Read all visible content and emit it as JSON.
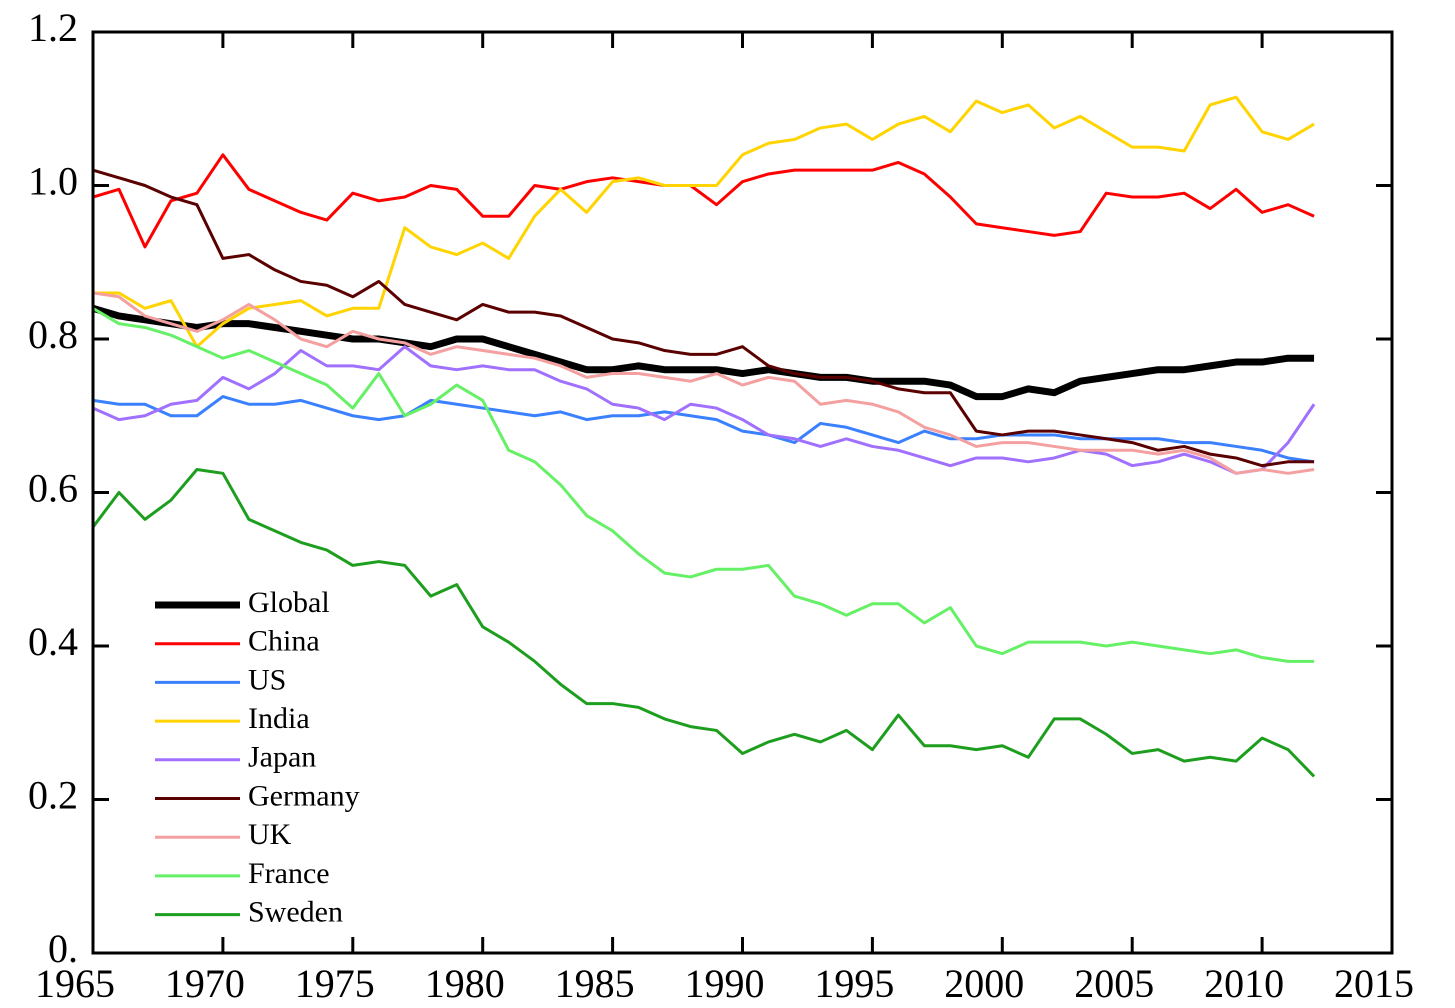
{
  "chart_data": {
    "type": "line",
    "x": [
      1965,
      1966,
      1967,
      1968,
      1969,
      1970,
      1971,
      1972,
      1973,
      1974,
      1975,
      1976,
      1977,
      1978,
      1979,
      1980,
      1981,
      1982,
      1983,
      1984,
      1985,
      1986,
      1987,
      1988,
      1989,
      1990,
      1991,
      1992,
      1993,
      1994,
      1995,
      1996,
      1997,
      1998,
      1999,
      2000,
      2001,
      2002,
      2003,
      2004,
      2005,
      2006,
      2007,
      2008,
      2009,
      2010,
      2011,
      2012
    ],
    "xlim": [
      1965,
      2015
    ],
    "xticks": [
      1965,
      1970,
      1975,
      1980,
      1985,
      1990,
      1995,
      2000,
      2005,
      2010,
      2015
    ],
    "ylim": [
      0,
      1.2
    ],
    "yticks": [
      {
        "value": 0,
        "label": "0."
      },
      0.2,
      0.4,
      0.6,
      0.8,
      {
        "value": 1,
        "label": "1.0"
      },
      1.2
    ],
    "legend": "lower left",
    "series": [
      {
        "name": "Global",
        "color": "#000000",
        "width": 7,
        "values": [
          0.84,
          0.83,
          0.825,
          0.82,
          0.815,
          0.82,
          0.82,
          0.815,
          0.81,
          0.805,
          0.8,
          0.8,
          0.795,
          0.79,
          0.8,
          0.8,
          0.79,
          0.78,
          0.77,
          0.76,
          0.76,
          0.765,
          0.76,
          0.76,
          0.76,
          0.755,
          0.76,
          0.755,
          0.75,
          0.75,
          0.745,
          0.745,
          0.745,
          0.74,
          0.725,
          0.725,
          0.735,
          0.73,
          0.745,
          0.75,
          0.755,
          0.76,
          0.76,
          0.765,
          0.77,
          0.77,
          0.775,
          0.775
        ]
      },
      {
        "name": "China",
        "color": "#ff0000",
        "width": 3,
        "values": [
          0.985,
          0.995,
          0.92,
          0.98,
          0.99,
          1.04,
          0.995,
          0.98,
          0.965,
          0.955,
          0.99,
          0.98,
          0.985,
          1.0,
          0.995,
          0.96,
          0.96,
          1.0,
          0.995,
          1.005,
          1.01,
          1.005,
          1.0,
          1.0,
          0.975,
          1.005,
          1.015,
          1.02,
          1.02,
          1.02,
          1.02,
          1.03,
          1.015,
          0.985,
          0.95,
          0.945,
          0.94,
          0.935,
          0.94,
          0.99,
          0.985,
          0.985,
          0.99,
          0.97,
          0.995,
          0.965,
          0.975,
          0.96
        ]
      },
      {
        "name": "US",
        "color": "#3a80ff",
        "width": 3,
        "values": [
          0.72,
          0.715,
          0.715,
          0.7,
          0.7,
          0.725,
          0.715,
          0.715,
          0.72,
          0.71,
          0.7,
          0.695,
          0.7,
          0.72,
          0.715,
          0.71,
          0.705,
          0.7,
          0.705,
          0.695,
          0.7,
          0.7,
          0.705,
          0.7,
          0.695,
          0.68,
          0.675,
          0.665,
          0.69,
          0.685,
          0.675,
          0.665,
          0.68,
          0.67,
          0.67,
          0.675,
          0.675,
          0.675,
          0.67,
          0.67,
          0.67,
          0.67,
          0.665,
          0.665,
          0.66,
          0.655,
          0.645,
          0.64
        ]
      },
      {
        "name": "India",
        "color": "#ffd400",
        "width": 3,
        "values": [
          0.86,
          0.86,
          0.84,
          0.85,
          0.79,
          0.82,
          0.84,
          0.845,
          0.85,
          0.83,
          0.84,
          0.84,
          0.945,
          0.92,
          0.91,
          0.925,
          0.905,
          0.96,
          0.995,
          0.965,
          1.005,
          1.01,
          1.0,
          1.0,
          1.0,
          1.04,
          1.055,
          1.06,
          1.075,
          1.08,
          1.06,
          1.08,
          1.09,
          1.07,
          1.11,
          1.095,
          1.105,
          1.075,
          1.09,
          1.07,
          1.05,
          1.05,
          1.045,
          1.105,
          1.115,
          1.07,
          1.06,
          1.08
        ]
      },
      {
        "name": "Japan",
        "color": "#a070ff",
        "width": 3,
        "values": [
          0.71,
          0.695,
          0.7,
          0.715,
          0.72,
          0.75,
          0.735,
          0.755,
          0.785,
          0.765,
          0.765,
          0.76,
          0.79,
          0.765,
          0.76,
          0.765,
          0.76,
          0.76,
          0.745,
          0.735,
          0.715,
          0.71,
          0.695,
          0.715,
          0.71,
          0.695,
          0.675,
          0.67,
          0.66,
          0.67,
          0.66,
          0.655,
          0.645,
          0.635,
          0.645,
          0.645,
          0.64,
          0.645,
          0.655,
          0.65,
          0.635,
          0.64,
          0.65,
          0.64,
          0.625,
          0.63,
          0.665,
          0.715
        ]
      },
      {
        "name": "Germany",
        "color": "#5a0000",
        "width": 3,
        "values": [
          1.02,
          1.01,
          1.0,
          0.985,
          0.975,
          0.905,
          0.91,
          0.89,
          0.875,
          0.87,
          0.855,
          0.875,
          0.845,
          0.835,
          0.825,
          0.845,
          0.835,
          0.835,
          0.83,
          0.815,
          0.8,
          0.795,
          0.785,
          0.78,
          0.78,
          0.79,
          0.765,
          0.755,
          0.75,
          0.75,
          0.745,
          0.735,
          0.73,
          0.73,
          0.68,
          0.675,
          0.68,
          0.68,
          0.675,
          0.67,
          0.665,
          0.655,
          0.66,
          0.65,
          0.645,
          0.635,
          0.64,
          0.64
        ]
      },
      {
        "name": "UK",
        "color": "#f4a0a0",
        "width": 3,
        "values": [
          0.86,
          0.855,
          0.83,
          0.82,
          0.81,
          0.825,
          0.845,
          0.825,
          0.8,
          0.79,
          0.81,
          0.8,
          0.795,
          0.78,
          0.79,
          0.785,
          0.78,
          0.775,
          0.765,
          0.75,
          0.755,
          0.755,
          0.75,
          0.745,
          0.755,
          0.74,
          0.75,
          0.745,
          0.715,
          0.72,
          0.715,
          0.705,
          0.685,
          0.675,
          0.66,
          0.665,
          0.665,
          0.66,
          0.655,
          0.655,
          0.655,
          0.65,
          0.655,
          0.645,
          0.625,
          0.63,
          0.625,
          0.63
        ]
      },
      {
        "name": "France",
        "color": "#66f066",
        "width": 3,
        "values": [
          0.84,
          0.82,
          0.815,
          0.805,
          0.79,
          0.775,
          0.785,
          0.77,
          0.755,
          0.74,
          0.71,
          0.755,
          0.7,
          0.715,
          0.74,
          0.72,
          0.655,
          0.64,
          0.61,
          0.57,
          0.55,
          0.52,
          0.495,
          0.49,
          0.5,
          0.5,
          0.505,
          0.465,
          0.455,
          0.44,
          0.455,
          0.455,
          0.43,
          0.45,
          0.4,
          0.39,
          0.405,
          0.405,
          0.405,
          0.4,
          0.405,
          0.4,
          0.395,
          0.39,
          0.395,
          0.385,
          0.38,
          0.38
        ]
      },
      {
        "name": "Sweden",
        "color": "#1e9e1e",
        "width": 3,
        "values": [
          0.555,
          0.6,
          0.565,
          0.59,
          0.63,
          0.625,
          0.565,
          0.55,
          0.535,
          0.525,
          0.505,
          0.51,
          0.505,
          0.465,
          0.48,
          0.425,
          0.405,
          0.38,
          0.35,
          0.325,
          0.325,
          0.32,
          0.305,
          0.295,
          0.29,
          0.26,
          0.275,
          0.285,
          0.275,
          0.29,
          0.265,
          0.31,
          0.27,
          0.27,
          0.265,
          0.27,
          0.255,
          0.305,
          0.305,
          0.285,
          0.26,
          0.265,
          0.25,
          0.255,
          0.25,
          0.28,
          0.265,
          0.23
        ]
      }
    ]
  }
}
